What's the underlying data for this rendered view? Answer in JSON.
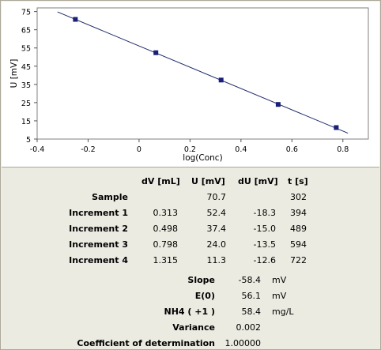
{
  "chart_data": {
    "type": "scatter",
    "xlabel": "log(Conc)",
    "ylabel": "U [mV]",
    "xlim": [
      -0.4,
      0.9
    ],
    "ylim": [
      5,
      77
    ],
    "x_ticks": [
      -0.4,
      -0.2,
      0,
      0.2,
      0.4,
      0.6,
      0.8
    ],
    "x_tick_labels": [
      "-0.4",
      "-0.2",
      "0",
      "0.2",
      "0.4",
      "0.6",
      "0.8"
    ],
    "y_ticks": [
      5,
      15,
      25,
      35,
      45,
      55,
      65,
      75
    ],
    "y_tick_labels": [
      "5",
      "15",
      "25",
      "35",
      "45",
      "55",
      "65",
      "75"
    ],
    "points": [
      {
        "x": -0.25,
        "y": 70.7
      },
      {
        "x": 0.066,
        "y": 52.4
      },
      {
        "x": 0.322,
        "y": 37.4
      },
      {
        "x": 0.546,
        "y": 24.0
      },
      {
        "x": 0.774,
        "y": 11.3
      }
    ],
    "fit_line": {
      "slope": -58.4,
      "intercept": 56.1,
      "x_range": [
        -0.32,
        0.82
      ]
    },
    "colors": {
      "line": "#1f2a6b",
      "marker": "#1a1f7a"
    }
  },
  "table": {
    "headers": [
      "dV [mL]",
      "U [mV]",
      "dU [mV]",
      "t [s]"
    ],
    "rows": [
      {
        "label": "Sample",
        "dv": "",
        "u": "70.7",
        "du": "",
        "t": "302"
      },
      {
        "label": "Increment 1",
        "dv": "0.313",
        "u": "52.4",
        "du": "-18.3",
        "t": "394"
      },
      {
        "label": "Increment 2",
        "dv": "0.498",
        "u": "37.4",
        "du": "-15.0",
        "t": "489"
      },
      {
        "label": "Increment 3",
        "dv": "0.798",
        "u": "24.0",
        "du": "-13.5",
        "t": "594"
      },
      {
        "label": "Increment 4",
        "dv": "1.315",
        "u": "11.3",
        "du": "-12.6",
        "t": "722"
      }
    ]
  },
  "summary": [
    {
      "label": "Slope",
      "value": "-58.4",
      "unit": "mV"
    },
    {
      "label": "E(0)",
      "value": "56.1",
      "unit": "mV"
    },
    {
      "label": "NH4 ( +1 )",
      "value": "58.4",
      "unit": "mg/L"
    },
    {
      "label": "Variance",
      "value": "0.002",
      "unit": ""
    },
    {
      "label": "Coefficient of determination",
      "value": "1.00000",
      "unit": ""
    }
  ]
}
